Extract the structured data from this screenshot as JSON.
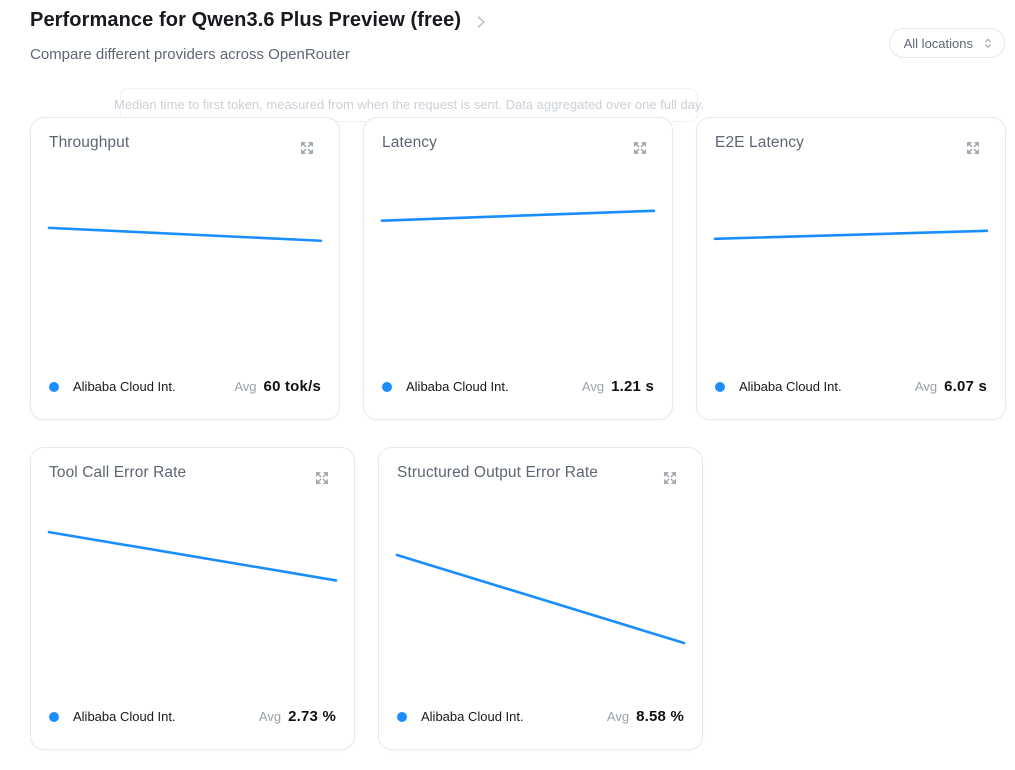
{
  "theme": {
    "accent": "#1b8eff",
    "card_border": "#e7e9ec",
    "title_color": "#17191e",
    "muted_color": "#5d6673",
    "faint_color": "#9aa1ab"
  },
  "header": {
    "title": "Performance for Qwen3.6 Plus Preview (free)",
    "subtitle": "Compare different providers across OpenRouter"
  },
  "filters": {
    "location": {
      "value": "All locations"
    }
  },
  "tooltip": {
    "text": "Median time to first token, measured from when the request is sent. Data aggregated over one full day."
  },
  "icons": {
    "title_chevron": "chevron-right-icon",
    "location_dropdown": "chevron-up-down-icon",
    "card_expand": "expand-arrows-icon",
    "legend_marker": "series-dot-icon"
  },
  "cards": [
    {
      "title": "Throughput",
      "legend": {
        "name": "Alibaba Cloud Int.",
        "avg_label": "Avg",
        "avg_value": "60 tok/s"
      },
      "chart_data": {
        "type": "line",
        "x": [
          0,
          1
        ],
        "series": [
          {
            "name": "Alibaba Cloud Int.",
            "values": [
              62,
              58
            ]
          }
        ],
        "unit": "tok/s",
        "avg": 60,
        "ylim": [
          16,
          75
        ],
        "axes_hidden": true,
        "legend_position": "bottom"
      }
    },
    {
      "title": "Latency",
      "legend": {
        "name": "Alibaba Cloud Int.",
        "avg_label": "Avg",
        "avg_value": "1.21 s"
      },
      "chart_data": {
        "type": "line",
        "x": [
          0,
          1
        ],
        "series": [
          {
            "name": "Alibaba Cloud Int.",
            "values": [
              1.18,
              1.24
            ]
          }
        ],
        "unit": "s",
        "avg": 1.21,
        "ylim": [
          0.24,
          1.39
        ],
        "axes_hidden": true,
        "legend_position": "bottom"
      }
    },
    {
      "title": "E2E Latency",
      "legend": {
        "name": "Alibaba Cloud Int.",
        "avg_label": "Avg",
        "avg_value": "6.07 s"
      },
      "chart_data": {
        "type": "line",
        "x": [
          0,
          1
        ],
        "series": [
          {
            "name": "Alibaba Cloud Int.",
            "values": [
              6.0,
              6.15
            ]
          }
        ],
        "unit": "s",
        "avg": 6.07,
        "ylim": [
          3.4,
          7.0
        ],
        "axes_hidden": true,
        "legend_position": "bottom"
      }
    },
    {
      "title": "Tool Call Error Rate",
      "legend": {
        "name": "Alibaba Cloud Int.",
        "avg_label": "Avg",
        "avg_value": "2.73 %"
      },
      "chart_data": {
        "type": "line",
        "x": [
          0,
          1
        ],
        "series": [
          {
            "name": "Alibaba Cloud Int.",
            "values": [
              3.5,
              2.0
            ]
          }
        ],
        "unit": "%",
        "avg": 2.73,
        "ylim": [
          -1.9,
          4.0
        ],
        "axes_hidden": true,
        "legend_position": "bottom"
      }
    },
    {
      "title": "Structured Output Error Rate",
      "legend": {
        "name": "Alibaba Cloud Int.",
        "avg_label": "Avg",
        "avg_value": "8.58 %"
      },
      "chart_data": {
        "type": "line",
        "x": [
          0,
          1
        ],
        "series": [
          {
            "name": "Alibaba Cloud Int.",
            "values": [
              10.8,
              6.4
            ]
          }
        ],
        "unit": "%",
        "avg": 8.58,
        "ylim": [
          3.25,
          12.75
        ],
        "axes_hidden": true,
        "legend_position": "bottom"
      }
    }
  ]
}
